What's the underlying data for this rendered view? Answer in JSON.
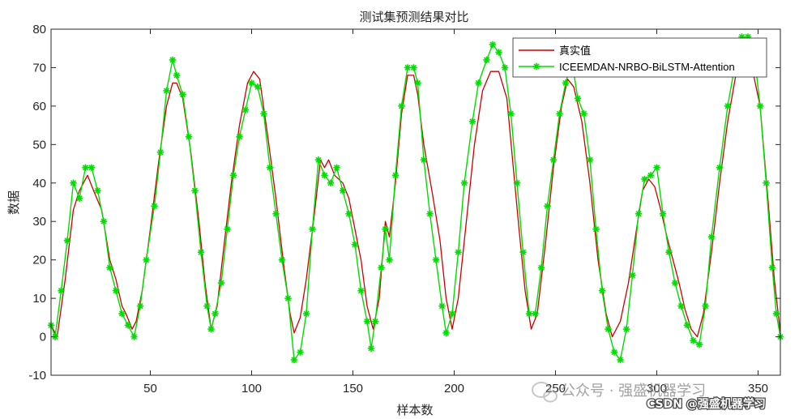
{
  "chart_data": {
    "type": "line",
    "title": "测试集预测结果对比",
    "xlabel": "样本数",
    "ylabel": "数据",
    "xlim": [
      1,
      361
    ],
    "ylim": [
      -10,
      80
    ],
    "xticks": [
      50,
      100,
      150,
      200,
      250,
      300,
      350
    ],
    "yticks": [
      -10,
      0,
      10,
      20,
      30,
      40,
      50,
      60,
      70,
      80
    ],
    "grid": false,
    "legend_position": "top-right",
    "series": [
      {
        "name": "真实值",
        "color": "#cc0000",
        "marker": "none",
        "points": [
          [
            1,
            3
          ],
          [
            4,
            0
          ],
          [
            8,
            15
          ],
          [
            12,
            33
          ],
          [
            15,
            38
          ],
          [
            19,
            42
          ],
          [
            22,
            38
          ],
          [
            26,
            33
          ],
          [
            30,
            20
          ],
          [
            33,
            15
          ],
          [
            36,
            8
          ],
          [
            38,
            6
          ],
          [
            41,
            2
          ],
          [
            43,
            4
          ],
          [
            46,
            12
          ],
          [
            50,
            28
          ],
          [
            54,
            45
          ],
          [
            58,
            60
          ],
          [
            61,
            66
          ],
          [
            63,
            66
          ],
          [
            66,
            62
          ],
          [
            70,
            48
          ],
          [
            74,
            30
          ],
          [
            77,
            14
          ],
          [
            80,
            2
          ],
          [
            83,
            8
          ],
          [
            86,
            22
          ],
          [
            90,
            40
          ],
          [
            94,
            55
          ],
          [
            98,
            66
          ],
          [
            101,
            69
          ],
          [
            104,
            67
          ],
          [
            108,
            52
          ],
          [
            112,
            36
          ],
          [
            116,
            18
          ],
          [
            119,
            6
          ],
          [
            121,
            1
          ],
          [
            124,
            5
          ],
          [
            127,
            15
          ],
          [
            131,
            32
          ],
          [
            134,
            46
          ],
          [
            136,
            44
          ],
          [
            138,
            46
          ],
          [
            141,
            42
          ],
          [
            145,
            40
          ],
          [
            148,
            36
          ],
          [
            151,
            28
          ],
          [
            154,
            20
          ],
          [
            157,
            8
          ],
          [
            160,
            2
          ],
          [
            163,
            10
          ],
          [
            166,
            30
          ],
          [
            168,
            26
          ],
          [
            171,
            40
          ],
          [
            174,
            58
          ],
          [
            177,
            68
          ],
          [
            180,
            68
          ],
          [
            182,
            63
          ],
          [
            185,
            50
          ],
          [
            189,
            38
          ],
          [
            193,
            25
          ],
          [
            196,
            10
          ],
          [
            199,
            2
          ],
          [
            202,
            10
          ],
          [
            206,
            30
          ],
          [
            210,
            50
          ],
          [
            214,
            64
          ],
          [
            218,
            69
          ],
          [
            222,
            69
          ],
          [
            226,
            62
          ],
          [
            229,
            45
          ],
          [
            232,
            28
          ],
          [
            235,
            12
          ],
          [
            238,
            2
          ],
          [
            241,
            6
          ],
          [
            245,
            24
          ],
          [
            249,
            44
          ],
          [
            253,
            60
          ],
          [
            256,
            67
          ],
          [
            259,
            65
          ],
          [
            263,
            56
          ],
          [
            267,
            40
          ],
          [
            271,
            20
          ],
          [
            275,
            6
          ],
          [
            278,
            0
          ],
          [
            282,
            4
          ],
          [
            286,
            14
          ],
          [
            290,
            28
          ],
          [
            293,
            38
          ],
          [
            296,
            41
          ],
          [
            299,
            39
          ],
          [
            302,
            33
          ],
          [
            305,
            26
          ],
          [
            308,
            20
          ],
          [
            311,
            14
          ],
          [
            314,
            7
          ],
          [
            317,
            2
          ],
          [
            320,
            0
          ],
          [
            323,
            6
          ],
          [
            327,
            22
          ],
          [
            331,
            40
          ],
          [
            335,
            56
          ],
          [
            339,
            68
          ],
          [
            343,
            72
          ],
          [
            347,
            70
          ],
          [
            351,
            60
          ],
          [
            355,
            35
          ],
          [
            358,
            15
          ],
          [
            361,
            1
          ]
        ]
      },
      {
        "name": "ICEEMDAN-NRBO-BiLSTM-Attention",
        "color": "#00dd00",
        "marker": "asterisk",
        "points": [
          [
            1,
            3
          ],
          [
            3,
            0
          ],
          [
            6,
            12
          ],
          [
            9,
            25
          ],
          [
            12,
            40
          ],
          [
            15,
            36
          ],
          [
            18,
            44
          ],
          [
            21,
            44
          ],
          [
            24,
            38
          ],
          [
            27,
            30
          ],
          [
            30,
            18
          ],
          [
            33,
            12
          ],
          [
            36,
            6
          ],
          [
            39,
            3
          ],
          [
            42,
            0
          ],
          [
            45,
            8
          ],
          [
            48,
            20
          ],
          [
            52,
            34
          ],
          [
            55,
            48
          ],
          [
            58,
            64
          ],
          [
            61,
            72
          ],
          [
            63,
            68
          ],
          [
            66,
            63
          ],
          [
            69,
            52
          ],
          [
            72,
            38
          ],
          [
            75,
            22
          ],
          [
            78,
            8
          ],
          [
            80,
            2
          ],
          [
            82,
            6
          ],
          [
            85,
            14
          ],
          [
            88,
            28
          ],
          [
            91,
            42
          ],
          [
            94,
            52
          ],
          [
            97,
            59
          ],
          [
            100,
            66
          ],
          [
            103,
            65
          ],
          [
            106,
            58
          ],
          [
            109,
            44
          ],
          [
            112,
            32
          ],
          [
            115,
            20
          ],
          [
            118,
            10
          ],
          [
            121,
            -6
          ],
          [
            124,
            -4
          ],
          [
            127,
            6
          ],
          [
            130,
            28
          ],
          [
            133,
            46
          ],
          [
            136,
            42
          ],
          [
            139,
            40
          ],
          [
            142,
            44
          ],
          [
            145,
            38
          ],
          [
            148,
            32
          ],
          [
            151,
            24
          ],
          [
            154,
            12
          ],
          [
            157,
            4
          ],
          [
            159,
            -3
          ],
          [
            161,
            4
          ],
          [
            164,
            18
          ],
          [
            166,
            28
          ],
          [
            168,
            20
          ],
          [
            171,
            42
          ],
          [
            174,
            60
          ],
          [
            177,
            70
          ],
          [
            180,
            70
          ],
          [
            182,
            66
          ],
          [
            185,
            46
          ],
          [
            188,
            32
          ],
          [
            191,
            20
          ],
          [
            194,
            8
          ],
          [
            196,
            1
          ],
          [
            199,
            6
          ],
          [
            202,
            22
          ],
          [
            205,
            40
          ],
          [
            209,
            56
          ],
          [
            212,
            66
          ],
          [
            216,
            72
          ],
          [
            219,
            76
          ],
          [
            222,
            74
          ],
          [
            225,
            70
          ],
          [
            228,
            58
          ],
          [
            231,
            40
          ],
          [
            234,
            22
          ],
          [
            237,
            6
          ],
          [
            240,
            6
          ],
          [
            243,
            18
          ],
          [
            246,
            34
          ],
          [
            249,
            46
          ],
          [
            252,
            58
          ],
          [
            255,
            66
          ],
          [
            258,
            72
          ],
          [
            261,
            62
          ],
          [
            264,
            58
          ],
          [
            267,
            46
          ],
          [
            270,
            28
          ],
          [
            273,
            12
          ],
          [
            276,
            2
          ],
          [
            279,
            -4
          ],
          [
            282,
            -6
          ],
          [
            285,
            2
          ],
          [
            288,
            16
          ],
          [
            291,
            32
          ],
          [
            294,
            41
          ],
          [
            297,
            42
          ],
          [
            300,
            44
          ],
          [
            303,
            32
          ],
          [
            306,
            22
          ],
          [
            309,
            14
          ],
          [
            312,
            8
          ],
          [
            315,
            3
          ],
          [
            318,
            -1
          ],
          [
            321,
            -2
          ],
          [
            324,
            8
          ],
          [
            327,
            26
          ],
          [
            331,
            44
          ],
          [
            335,
            60
          ],
          [
            339,
            72
          ],
          [
            342,
            78
          ],
          [
            345,
            78
          ],
          [
            348,
            74
          ],
          [
            351,
            60
          ],
          [
            354,
            40
          ],
          [
            357,
            18
          ],
          [
            359,
            6
          ],
          [
            361,
            0
          ]
        ]
      }
    ],
    "annotations": [
      "公众号 · 强盛机器学习",
      "CSDN @强盛机器学习"
    ]
  }
}
